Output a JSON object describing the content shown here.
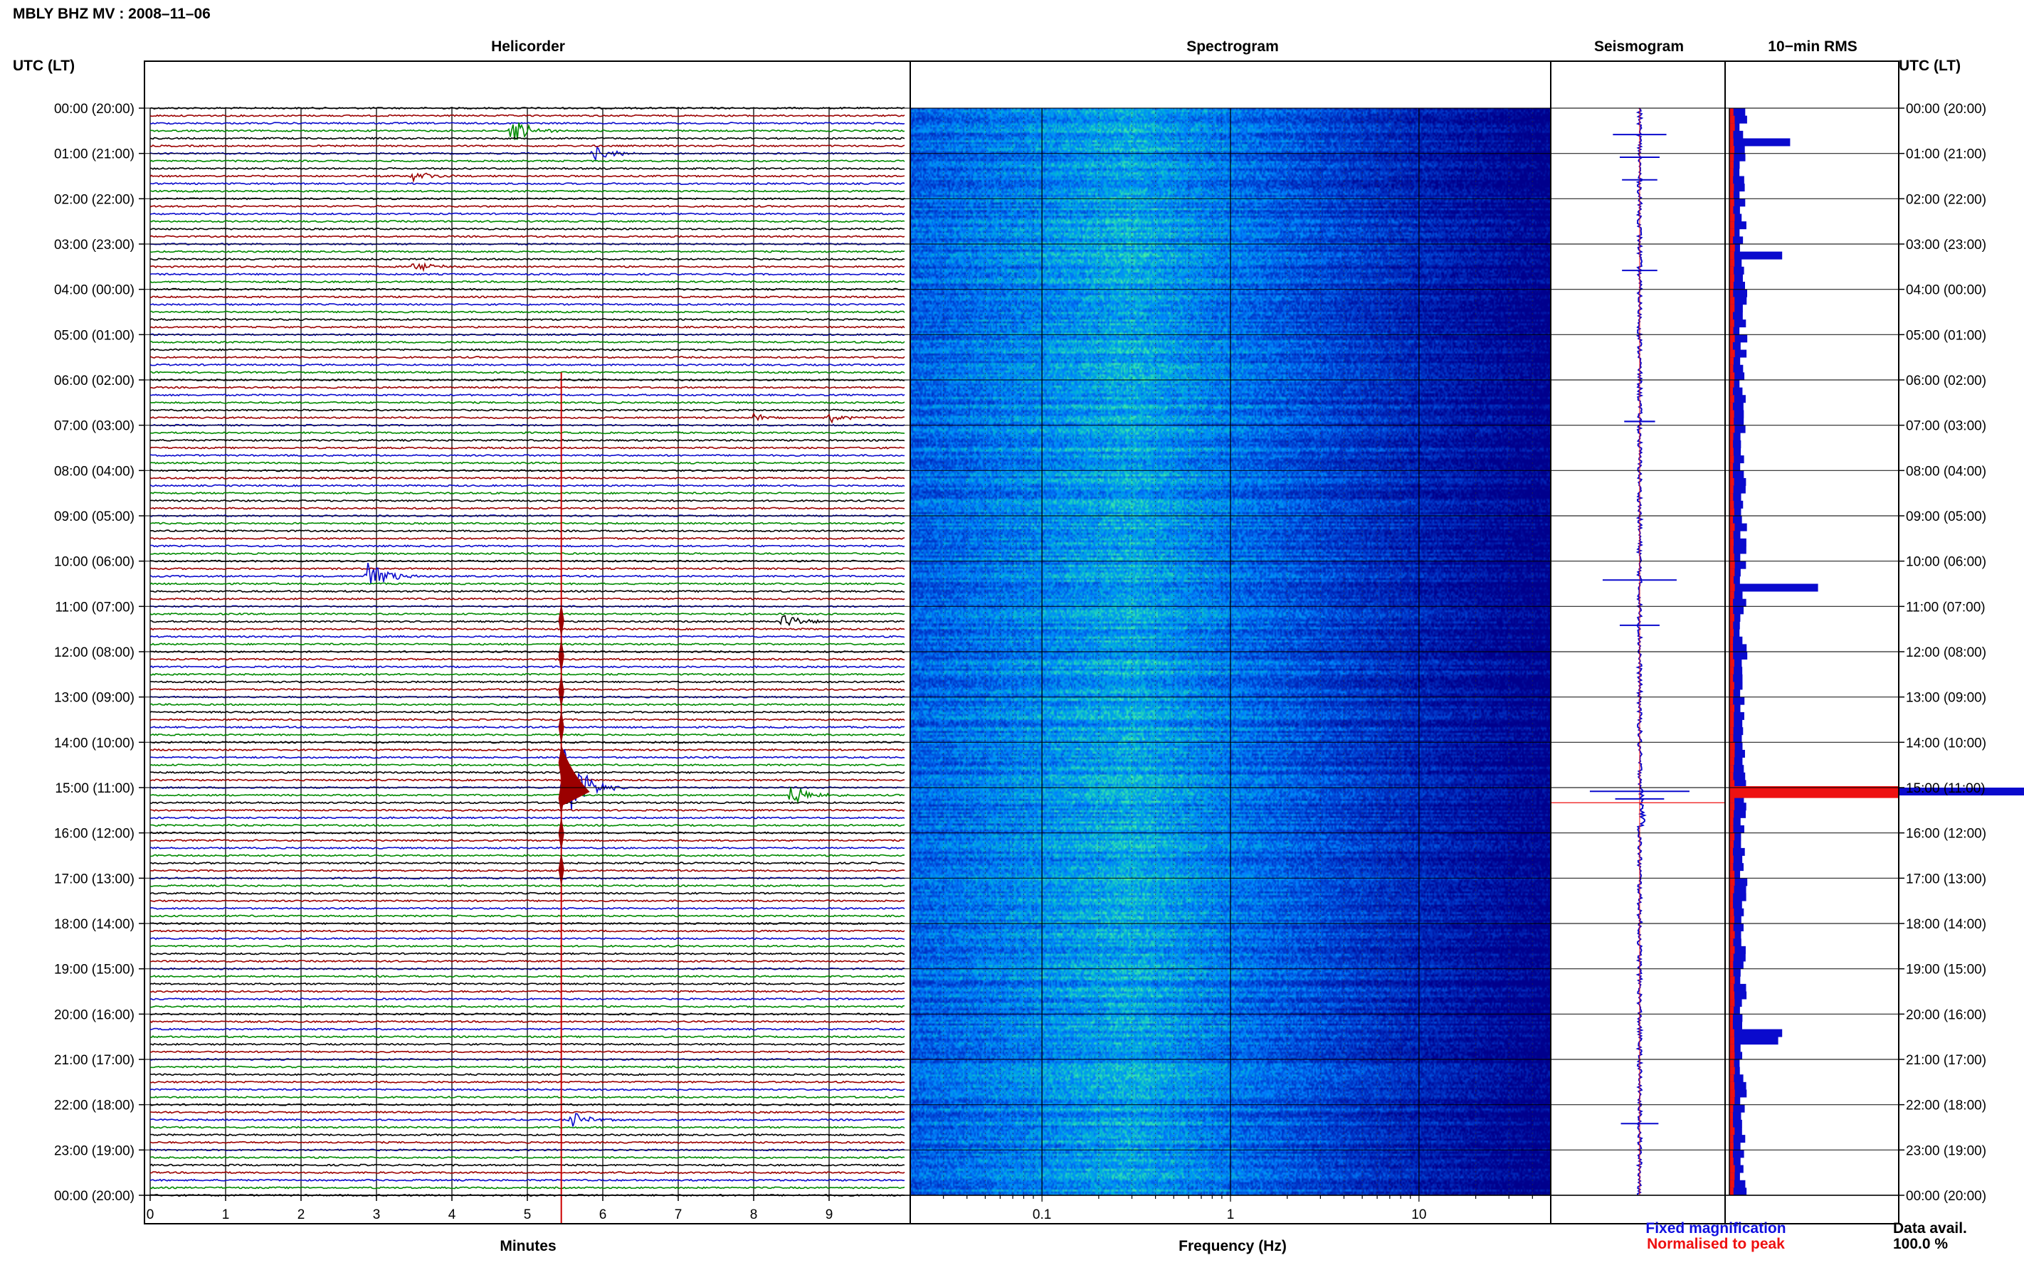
{
  "header": {
    "station_title": "MBLY BHZ MV : 2008–11–06"
  },
  "panels": {
    "helicorder_title": "Helicorder",
    "spectrogram_title": "Spectrogram",
    "seismogram_title": "Seismogram",
    "rms_title": "10−min RMS"
  },
  "axes": {
    "left_time_header": "UTC (LT)",
    "right_time_header": "UTC (LT)",
    "helicorder_xlabel": "Minutes",
    "spectrogram_xlabel": "Frequency (Hz)"
  },
  "legend": {
    "fixed_magnification": "Fixed magnification",
    "normalised_to_peak": "Normalised to peak",
    "fixed_color": "#1010e0",
    "normalised_color": "#ee1111"
  },
  "data_availability": {
    "label": "Data avail.",
    "value": "100.0 %"
  },
  "colors": {
    "trace_cycle": [
      "#000000",
      "#9b0000",
      "#0a0acd",
      "#008a00"
    ],
    "event_trace": "#9b0000",
    "cursor_line": "#cc0000",
    "rms_fixed": "#0a0acd",
    "rms_normalised": "#ee1111",
    "spectrogram_low": "#00148c",
    "spectrogram_high": "#3ff0a0"
  },
  "chart_data": [
    {
      "type": "line",
      "name": "helicorder",
      "title": "Helicorder",
      "xlabel": "Minutes",
      "xlim": [
        0,
        10
      ],
      "x_ticks": [
        "0",
        "1",
        "2",
        "3",
        "4",
        "5",
        "6",
        "7",
        "8",
        "9"
      ],
      "line_minutes": 10,
      "lines": 144,
      "time_ticks": [
        "00:00 (20:00)",
        "01:00 (21:00)",
        "02:00 (22:00)",
        "03:00 (23:00)",
        "04:00 (00:00)",
        "05:00 (01:00)",
        "06:00 (02:00)",
        "07:00 (03:00)",
        "08:00 (04:00)",
        "09:00 (05:00)",
        "10:00 (06:00)",
        "11:00 (07:00)",
        "12:00 (08:00)",
        "13:00 (09:00)",
        "14:00 (10:00)",
        "15:00 (11:00)",
        "16:00 (12:00)",
        "17:00 (13:00)",
        "18:00 (14:00)",
        "19:00 (15:00)",
        "20:00 (16:00)",
        "21:00 (17:00)",
        "22:00 (18:00)",
        "23:00 (19:00)",
        "00:00 (20:00)"
      ],
      "events": [
        {
          "line": 3,
          "minute": 4.8,
          "size": 1.6
        },
        {
          "line": 6,
          "minute": 5.9,
          "size": 1.0
        },
        {
          "line": 9,
          "minute": 3.5,
          "size": 0.8
        },
        {
          "line": 21,
          "minute": 3.5,
          "size": 0.8
        },
        {
          "line": 41,
          "minute": 8.0,
          "size": 0.6
        },
        {
          "line": 41,
          "minute": 9.0,
          "size": 0.6
        },
        {
          "line": 62,
          "minute": 2.9,
          "size": 2.5
        },
        {
          "line": 68,
          "minute": 8.4,
          "size": 1.0
        },
        {
          "line": 90,
          "minute": 5.5,
          "size": 6.0
        },
        {
          "line": 91,
          "minute": 8.5,
          "size": 1.4
        },
        {
          "line": 134,
          "minute": 5.6,
          "size": 0.9
        }
      ],
      "marker_minute": 5.45,
      "marker_from_line": 35
    },
    {
      "type": "heatmap",
      "name": "spectrogram",
      "title": "Spectrogram",
      "xlabel": "Frequency (Hz)",
      "xscale": "log",
      "xlim": [
        0.02,
        50
      ],
      "x_ticks": [
        {
          "value": 0.1,
          "label": "0.1"
        },
        {
          "value": 1,
          "label": "1"
        },
        {
          "value": 10,
          "label": "10"
        }
      ],
      "rows": 144,
      "peak_frequency_hz": 0.3
    },
    {
      "type": "line",
      "name": "seismogram",
      "title": "Seismogram",
      "series": [
        {
          "name": "Fixed magnification"
        }
      ],
      "marker_time_utc": "15:20"
    },
    {
      "type": "bar",
      "name": "rms",
      "title": "10−min RMS",
      "bins": 144,
      "series": [
        {
          "name": "Fixed magnification",
          "peak_bins": [
            4,
            19,
            63,
            90,
            122,
            123
          ],
          "peak_relative": [
            0.45,
            0.35,
            0.8,
            5.0,
            0.35,
            0.3
          ]
        },
        {
          "name": "Normalised to peak"
        }
      ]
    }
  ]
}
